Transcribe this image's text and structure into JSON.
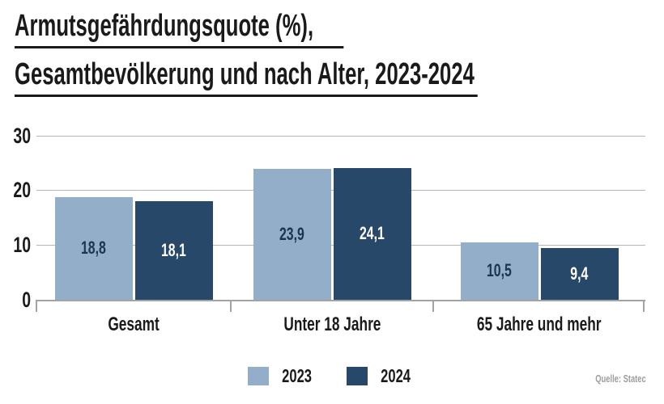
{
  "title": {
    "line1": "Armutsgefährdungsquote (%),",
    "line2": "Gesamtbevölkerung und nach Alter, 2023-2024"
  },
  "source": "Quelle: Statec",
  "colors": {
    "text": "#1A1A1A",
    "gridline": "#B5B5B5",
    "axis": "#A3A3A3",
    "source_text": "#9E9E9E"
  },
  "chart_data": {
    "type": "bar",
    "title": "Armutsgefährdungsquote (%), Gesamtbevölkerung und nach Alter, 2023-2024",
    "categories": [
      "Gesamt",
      "Unter 18 Jahre",
      "65 Jahre und mehr"
    ],
    "series": [
      {
        "name": "2023",
        "values": [
          18.8,
          23.9,
          10.5
        ],
        "value_labels": [
          "18,8",
          "23,9",
          "10,5"
        ],
        "color": "#92AEC9",
        "label_color": "#1C3450"
      },
      {
        "name": "2024",
        "values": [
          18.1,
          24.1,
          9.4
        ],
        "value_labels": [
          "18,1",
          "24,1",
          "9,4"
        ],
        "color": "#28486A",
        "label_color": "#FFFFFF"
      }
    ],
    "y_ticks": [
      0,
      10,
      20,
      30
    ],
    "ylim": [
      0,
      30
    ],
    "xlabel": "",
    "ylabel": "",
    "grid": "horizontal",
    "legend_position": "bottom",
    "value_labels": "inside-center"
  }
}
